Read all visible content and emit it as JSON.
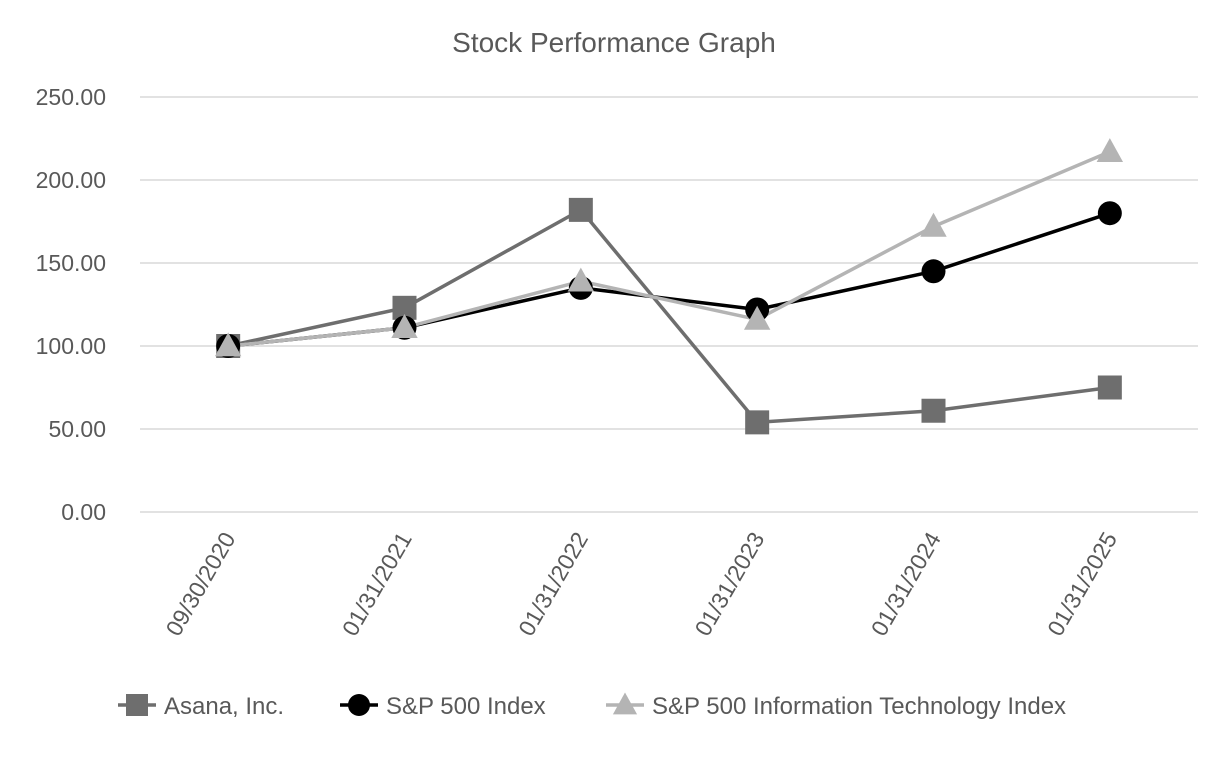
{
  "chart_data": {
    "type": "line",
    "title": "Stock Performance Graph",
    "xlabel": "",
    "ylabel": "",
    "categories": [
      "09/30/2020",
      "01/31/2021",
      "01/31/2022",
      "01/31/2023",
      "01/31/2024",
      "01/31/2025"
    ],
    "ylim": [
      0,
      250
    ],
    "yticks": [
      "0.00",
      "50.00",
      "100.00",
      "150.00",
      "200.00",
      "250.00"
    ],
    "grid": true,
    "legend_position": "bottom",
    "series": [
      {
        "name": "Asana, Inc.",
        "marker": "square",
        "color": "#6e6e6e",
        "values": [
          100,
          123,
          182,
          54,
          61,
          75
        ]
      },
      {
        "name": "S&P 500 Index",
        "marker": "circle",
        "color": "#000000",
        "values": [
          100,
          111,
          135,
          122,
          145,
          180
        ]
      },
      {
        "name": "S&P 500 Information Technology Index",
        "marker": "triangle",
        "color": "#b4b4b4",
        "values": [
          100,
          111,
          139,
          116,
          172,
          217
        ]
      }
    ]
  }
}
